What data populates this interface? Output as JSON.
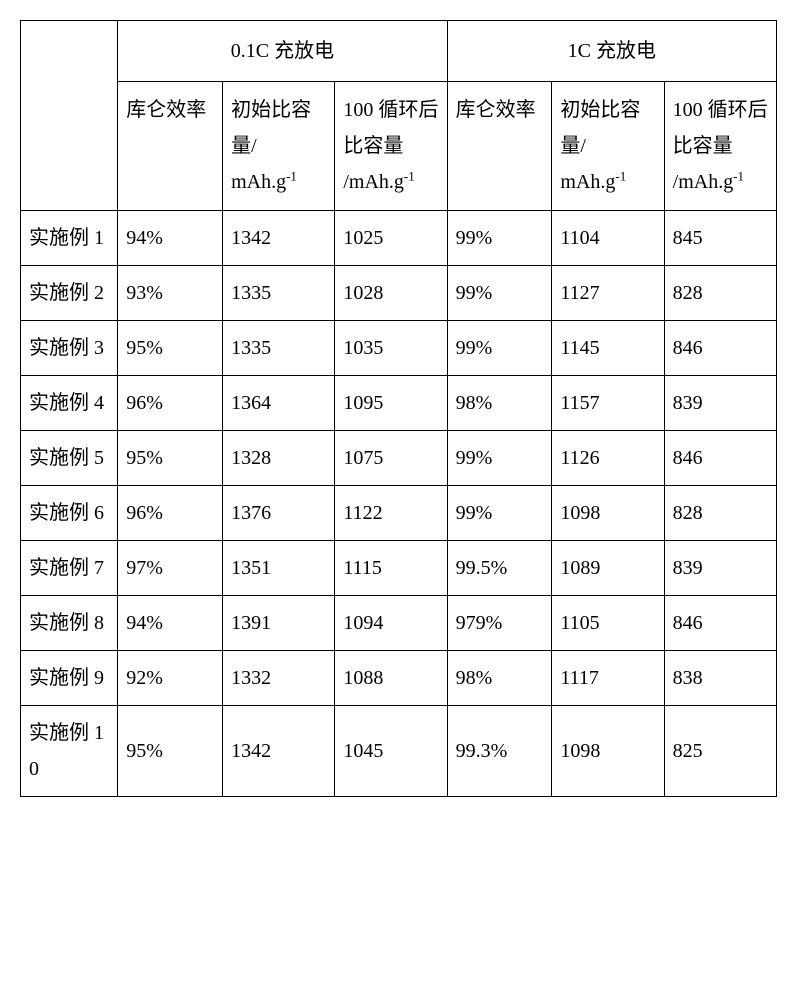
{
  "table": {
    "group_headers": [
      "0.1C 充放电",
      "1C 充放电"
    ],
    "sub_headers": {
      "h0": "库仑效率",
      "h1_a": "初始比容量/",
      "h1_b": "mAh.g",
      "h2_a": "100 循环后比容量",
      "h2_b": "/mAh.g",
      "h3": "库仑效率",
      "h4_a": "初始比容量/",
      "h4_b": "mAh.g",
      "h5_a": "100 循环后比容量",
      "h5_b": "/mAh.g"
    },
    "rows": [
      {
        "label": "实施例 1",
        "c": [
          "94%",
          "1342",
          "1025",
          "99%",
          "1104",
          "845"
        ]
      },
      {
        "label": "实施例 2",
        "c": [
          "93%",
          "1335",
          "1028",
          "99%",
          "1127",
          "828"
        ]
      },
      {
        "label": "实施例 3",
        "c": [
          "95%",
          "1335",
          "1035",
          "99%",
          "1145",
          "846"
        ]
      },
      {
        "label": "实施例 4",
        "c": [
          "96%",
          "1364",
          "1095",
          "98%",
          "1157",
          "839"
        ]
      },
      {
        "label": "实施例 5",
        "c": [
          "95%",
          "1328",
          "1075",
          "99%",
          "1126",
          "846"
        ]
      },
      {
        "label": "实施例 6",
        "c": [
          "96%",
          "1376",
          "1122",
          "99%",
          "1098",
          "828"
        ]
      },
      {
        "label": "实施例 7",
        "c": [
          "97%",
          "1351",
          "1115",
          "99.5%",
          "1089",
          "839"
        ]
      },
      {
        "label": "实施例 8",
        "c": [
          "94%",
          "1391",
          "1094",
          "979%",
          "1105",
          "846"
        ]
      },
      {
        "label": "实施例 9",
        "c": [
          "92%",
          "1332",
          "1088",
          "98%",
          "1117",
          "838"
        ]
      },
      {
        "label": "实施例 10",
        "c": [
          "95%",
          "1342",
          "1045",
          "99.3%",
          "1098",
          "825"
        ]
      }
    ],
    "colors": {
      "border": "#000000",
      "background": "#ffffff",
      "text": "#000000"
    },
    "font": {
      "family": "SimSun",
      "size_pt": 15
    }
  }
}
